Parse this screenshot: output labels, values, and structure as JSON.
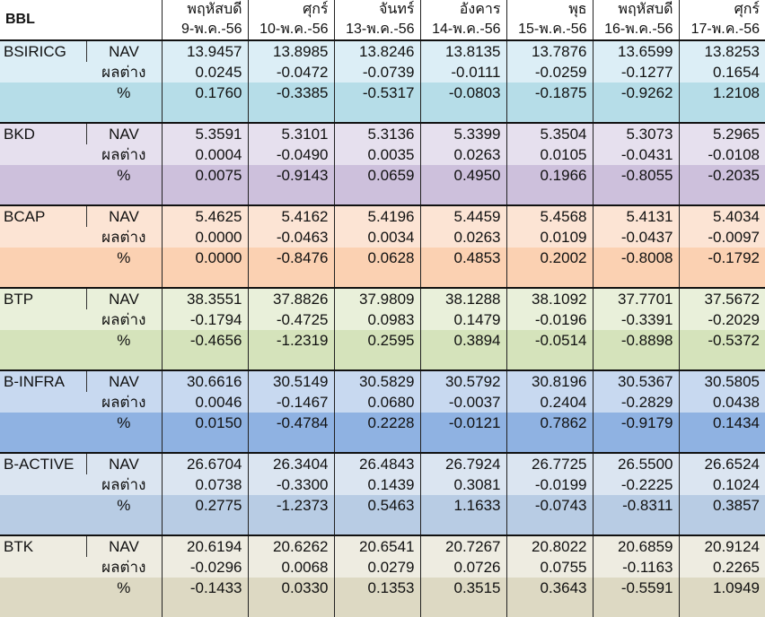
{
  "title": "BBL",
  "days": [
    {
      "weekday": "พฤหัสบดี",
      "date": "9-พ.ค.-56"
    },
    {
      "weekday": "ศุกร์",
      "date": "10-พ.ค.-56"
    },
    {
      "weekday": "จันทร์",
      "date": "13-พ.ค.-56"
    },
    {
      "weekday": "อังคาร",
      "date": "14-พ.ค.-56"
    },
    {
      "weekday": "พุธ",
      "date": "15-พ.ค.-56"
    },
    {
      "weekday": "พฤหัสบดี",
      "date": "16-พ.ค.-56"
    },
    {
      "weekday": "ศุกร์",
      "date": "17-พ.ค.-56"
    }
  ],
  "metric_labels": {
    "nav": "NAV",
    "diff": "ผลต่าง",
    "pct": "%"
  },
  "funds": [
    {
      "name": "BSIRICG",
      "colors": {
        "row1": "#dceef6",
        "row2": "#dceef6",
        "row3": "#b6dde8"
      },
      "nav": [
        "13.9457",
        "13.8985",
        "13.8246",
        "13.8135",
        "13.7876",
        "13.6599",
        "13.8253"
      ],
      "diff": [
        "0.0245",
        "-0.0472",
        "-0.0739",
        "-0.0111",
        "-0.0259",
        "-0.1277",
        "0.1654"
      ],
      "pct": [
        "0.1760",
        "-0.3385",
        "-0.5317",
        "-0.0803",
        "-0.1875",
        "-0.9262",
        "1.2108"
      ]
    },
    {
      "name": "BKD",
      "colors": {
        "row1": "#e6e0ee",
        "row2": "#e6e0ee",
        "row3": "#cdc0dc"
      },
      "nav": [
        "5.3591",
        "5.3101",
        "5.3136",
        "5.3399",
        "5.3504",
        "5.3073",
        "5.2965"
      ],
      "diff": [
        "0.0004",
        "-0.0490",
        "0.0035",
        "0.0263",
        "0.0105",
        "-0.0431",
        "-0.0108"
      ],
      "pct": [
        "0.0075",
        "-0.9143",
        "0.0659",
        "0.4950",
        "0.1966",
        "-0.8055",
        "-0.2035"
      ]
    },
    {
      "name": "BCAP",
      "colors": {
        "row1": "#fce4d4",
        "row2": "#fce4d4",
        "row3": "#fbd1b2"
      },
      "nav": [
        "5.4625",
        "5.4162",
        "5.4196",
        "5.4459",
        "5.4568",
        "5.4131",
        "5.4034"
      ],
      "diff": [
        "0.0000",
        "-0.0463",
        "0.0034",
        "0.0263",
        "0.0109",
        "-0.0437",
        "-0.0097"
      ],
      "pct": [
        "0.0000",
        "-0.8476",
        "0.0628",
        "0.4853",
        "0.2002",
        "-0.8008",
        "-0.1792"
      ]
    },
    {
      "name": "BTP",
      "colors": {
        "row1": "#e9f0da",
        "row2": "#e9f0da",
        "row3": "#d5e3bb"
      },
      "nav": [
        "38.3551",
        "37.8826",
        "37.9809",
        "38.1288",
        "38.1092",
        "37.7701",
        "37.5672"
      ],
      "diff": [
        "-0.1794",
        "-0.4725",
        "0.0983",
        "0.1479",
        "-0.0196",
        "-0.3391",
        "-0.2029"
      ],
      "pct": [
        "-0.4656",
        "-1.2319",
        "0.2595",
        "0.3894",
        "-0.0514",
        "-0.8898",
        "-0.5372"
      ]
    },
    {
      "name": "B-INFRA",
      "colors": {
        "row1": "#c8d9f0",
        "row2": "#c8d9f0",
        "row3": "#8fb2e2"
      },
      "nav": [
        "30.6616",
        "30.5149",
        "30.5829",
        "30.5792",
        "30.8196",
        "30.5367",
        "30.5805"
      ],
      "diff": [
        "0.0046",
        "-0.1467",
        "0.0680",
        "-0.0037",
        "0.2404",
        "-0.2829",
        "0.0438"
      ],
      "pct": [
        "0.0150",
        "-0.4784",
        "0.2228",
        "-0.0121",
        "0.7862",
        "-0.9179",
        "0.1434"
      ]
    },
    {
      "name": "B-ACTIVE",
      "colors": {
        "row1": "#dbe5f1",
        "row2": "#dbe5f1",
        "row3": "#b8cce4"
      },
      "nav": [
        "26.6704",
        "26.3404",
        "26.4843",
        "26.7924",
        "26.7725",
        "26.5500",
        "26.6524"
      ],
      "diff": [
        "0.0738",
        "-0.3300",
        "0.1439",
        "0.3081",
        "-0.0199",
        "-0.2225",
        "0.1024"
      ],
      "pct": [
        "0.2775",
        "-1.2373",
        "0.5463",
        "1.1633",
        "-0.0743",
        "-0.8311",
        "0.3857"
      ]
    },
    {
      "name": "BTK",
      "colors": {
        "row1": "#eeece1",
        "row2": "#eeece1",
        "row3": "#ddd9c3"
      },
      "nav": [
        "20.6194",
        "20.6262",
        "20.6541",
        "20.7267",
        "20.8022",
        "20.6859",
        "20.9124"
      ],
      "diff": [
        "-0.0296",
        "0.0068",
        "0.0279",
        "0.0726",
        "0.0755",
        "-0.1163",
        "0.2265"
      ],
      "pct": [
        "-0.1433",
        "0.0330",
        "0.1353",
        "0.3515",
        "0.3643",
        "-0.5591",
        "1.0949"
      ]
    }
  ]
}
